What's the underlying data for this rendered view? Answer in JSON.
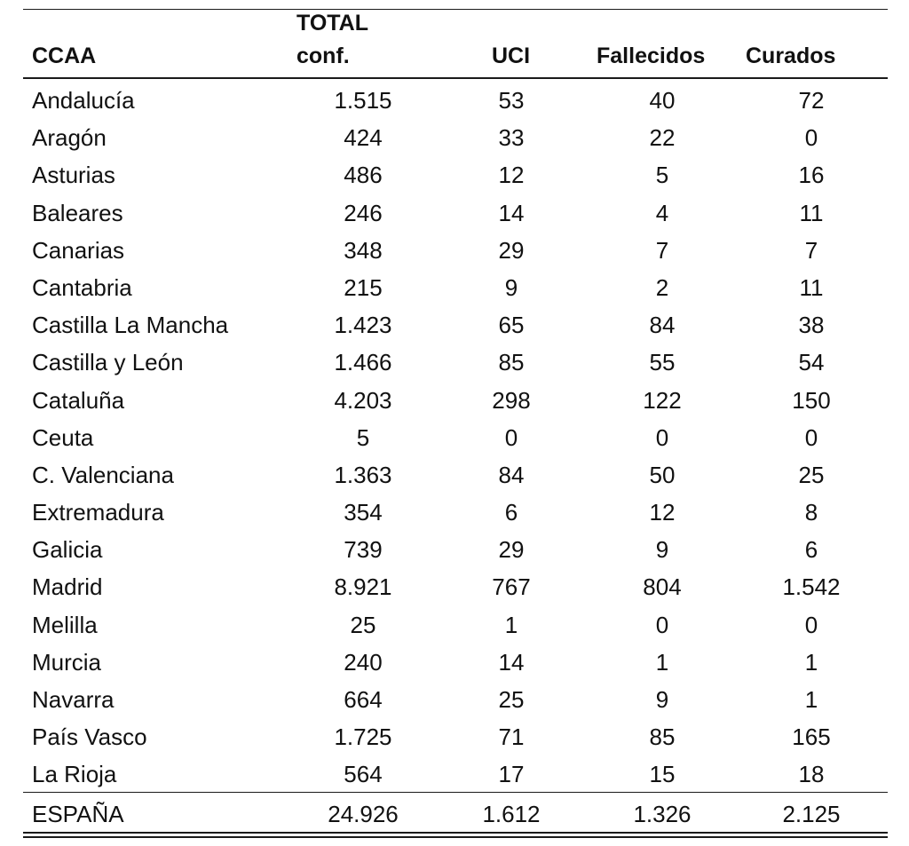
{
  "table": {
    "headers": {
      "ccaa": "CCAA",
      "total_line1": "TOTAL",
      "total_line2": "conf.",
      "uci": "UCI",
      "fallecidos": "Fallecidos",
      "curados": "Curados"
    },
    "rows": [
      {
        "ccaa": "Andalucía",
        "total": "1.515",
        "uci": "53",
        "fallecidos": "40",
        "curados": "72"
      },
      {
        "ccaa": "Aragón",
        "total": "424",
        "uci": "33",
        "fallecidos": "22",
        "curados": "0"
      },
      {
        "ccaa": "Asturias",
        "total": "486",
        "uci": "12",
        "fallecidos": "5",
        "curados": "16"
      },
      {
        "ccaa": "Baleares",
        "total": "246",
        "uci": "14",
        "fallecidos": "4",
        "curados": "11"
      },
      {
        "ccaa": "Canarias",
        "total": "348",
        "uci": "29",
        "fallecidos": "7",
        "curados": "7"
      },
      {
        "ccaa": "Cantabria",
        "total": "215",
        "uci": "9",
        "fallecidos": "2",
        "curados": "11"
      },
      {
        "ccaa": "Castilla La Mancha",
        "total": "1.423",
        "uci": "65",
        "fallecidos": "84",
        "curados": "38"
      },
      {
        "ccaa": "Castilla y León",
        "total": "1.466",
        "uci": "85",
        "fallecidos": "55",
        "curados": "54"
      },
      {
        "ccaa": "Cataluña",
        "total": "4.203",
        "uci": "298",
        "fallecidos": "122",
        "curados": "150"
      },
      {
        "ccaa": "Ceuta",
        "total": "5",
        "uci": "0",
        "fallecidos": "0",
        "curados": "0"
      },
      {
        "ccaa": "C. Valenciana",
        "total": "1.363",
        "uci": "84",
        "fallecidos": "50",
        "curados": "25"
      },
      {
        "ccaa": "Extremadura",
        "total": "354",
        "uci": "6",
        "fallecidos": "12",
        "curados": "8"
      },
      {
        "ccaa": "Galicia",
        "total": "739",
        "uci": "29",
        "fallecidos": "9",
        "curados": "6"
      },
      {
        "ccaa": "Madrid",
        "total": "8.921",
        "uci": "767",
        "fallecidos": "804",
        "curados": "1.542"
      },
      {
        "ccaa": "Melilla",
        "total": "25",
        "uci": "1",
        "fallecidos": "0",
        "curados": "0"
      },
      {
        "ccaa": "Murcia",
        "total": "240",
        "uci": "14",
        "fallecidos": "1",
        "curados": "1"
      },
      {
        "ccaa": "Navarra",
        "total": "664",
        "uci": "25",
        "fallecidos": "9",
        "curados": "1"
      },
      {
        "ccaa": "País Vasco",
        "total": "1.725",
        "uci": "71",
        "fallecidos": "85",
        "curados": "165"
      },
      {
        "ccaa": "La Rioja",
        "total": "564",
        "uci": "17",
        "fallecidos": "15",
        "curados": "18"
      }
    ],
    "total_row": {
      "ccaa": "ESPAÑA",
      "total": "24.926",
      "uci": "1.612",
      "fallecidos": "1.326",
      "curados": "2.125"
    }
  }
}
